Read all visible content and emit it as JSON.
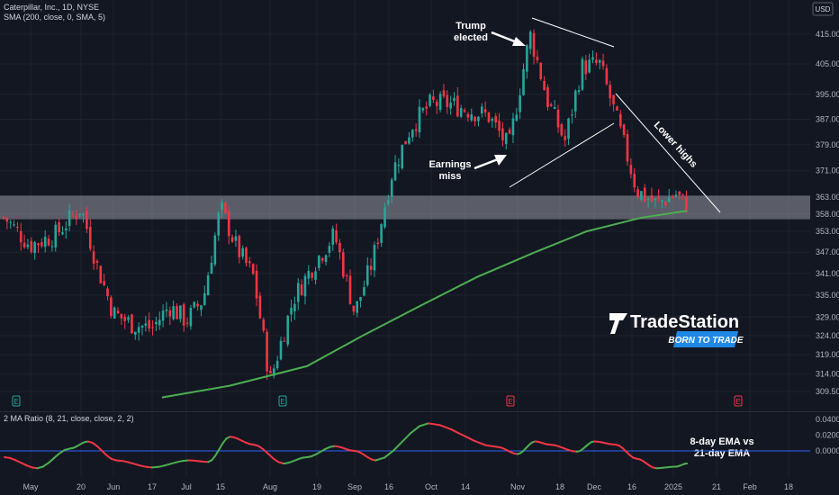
{
  "legend": {
    "main": "Caterpillar, Inc., 1D, NYSE",
    "sma": "SMA (200, close, 0, SMA, 5)",
    "ratio": "2 MA Ratio (8, 21, close, close, 2, 2)"
  },
  "currency": "USD",
  "annotations": {
    "trump_line1": "Trump",
    "trump_line2": "elected",
    "earnings_line1": "Earnings",
    "earnings_line2": "miss",
    "lower_highs": "Lower highs",
    "ema_line1": "8-day EMA vs",
    "ema_line2": "21-day EMA"
  },
  "event_markers": [
    "E",
    "E",
    "E",
    "E"
  ],
  "logo": {
    "brand": "TradeStation",
    "tagline": "BORN TO TRADE"
  },
  "colors": {
    "up": "#26a69a",
    "down": "#f23645",
    "sma": "#4caf50",
    "support_zone": "#9598a1",
    "ema_up": "#4caf50",
    "ema_down": "#f23645",
    "zero_line": "#2962ff"
  },
  "chart_data": [
    {
      "type": "candlestick",
      "title": "Caterpillar, Inc., 1D, NYSE",
      "x_tick_labels": [
        "May",
        "20",
        "Jun",
        "17",
        "Jul",
        "15",
        "Aug",
        "19",
        "Sep",
        "16",
        "Oct",
        "14",
        "Nov",
        "18",
        "Dec",
        "16",
        "2025",
        "21",
        "Feb",
        "18"
      ],
      "y_tick_labels": [
        "415.00",
        "405.00",
        "395.00",
        "387.00",
        "379.00",
        "371.00",
        "363.00",
        "358.00",
        "353.00",
        "347.00",
        "341.00",
        "335.00",
        "329.00",
        "324.00",
        "319.00",
        "314.00",
        "309.50"
      ],
      "y_axis": "log",
      "ylim": [
        307,
        420
      ],
      "support_zone": [
        356.5,
        363.5
      ],
      "close_approx": [
        {
          "x": "Apr 29",
          "y": 357
        },
        {
          "x": "May 6",
          "y": 349
        },
        {
          "x": "May 13",
          "y": 352
        },
        {
          "x": "May 20",
          "y": 360
        },
        {
          "x": "May 27",
          "y": 343
        },
        {
          "x": "Jun 3",
          "y": 330
        },
        {
          "x": "Jun 10",
          "y": 327
        },
        {
          "x": "Jun 17",
          "y": 326
        },
        {
          "x": "Jun 24",
          "y": 332
        },
        {
          "x": "Jul 1",
          "y": 328
        },
        {
          "x": "Jul 8",
          "y": 334
        },
        {
          "x": "Jul 15",
          "y": 360
        },
        {
          "x": "Jul 22",
          "y": 348
        },
        {
          "x": "Jul 29",
          "y": 340
        },
        {
          "x": "Aug 5",
          "y": 312
        },
        {
          "x": "Aug 12",
          "y": 334
        },
        {
          "x": "Aug 19",
          "y": 345
        },
        {
          "x": "Aug 26",
          "y": 352
        },
        {
          "x": "Sep 3",
          "y": 330
        },
        {
          "x": "Sep 10",
          "y": 345
        },
        {
          "x": "Sep 17",
          "y": 370
        },
        {
          "x": "Sep 24",
          "y": 385
        },
        {
          "x": "Oct 1",
          "y": 392
        },
        {
          "x": "Oct 8",
          "y": 392
        },
        {
          "x": "Oct 15",
          "y": 390
        },
        {
          "x": "Oct 22",
          "y": 388
        },
        {
          "x": "Oct 29",
          "y": 378
        },
        {
          "x": "Nov 6",
          "y": 415
        },
        {
          "x": "Nov 13",
          "y": 393
        },
        {
          "x": "Nov 20",
          "y": 380
        },
        {
          "x": "Nov 27",
          "y": 404
        },
        {
          "x": "Dec 4",
          "y": 405
        },
        {
          "x": "Dec 11",
          "y": 385
        },
        {
          "x": "Dec 18",
          "y": 365
        },
        {
          "x": "Dec 26",
          "y": 361
        },
        {
          "x": "Jan 3",
          "y": 364
        },
        {
          "x": "Jan 7",
          "y": 361
        }
      ],
      "series": [
        {
          "name": "SMA (200, close, 0, SMA, 5)",
          "points": [
            {
              "x": "Jun 21",
              "y": 308
            },
            {
              "x": "Jul 19",
              "y": 311
            },
            {
              "x": "Aug 16",
              "y": 316
            },
            {
              "x": "Sep 6",
              "y": 324
            },
            {
              "x": "Sep 27",
              "y": 332
            },
            {
              "x": "Oct 18",
              "y": 340
            },
            {
              "x": "Nov 8",
              "y": 347
            },
            {
              "x": "Nov 29",
              "y": 353
            },
            {
              "x": "Dec 20",
              "y": 357
            },
            {
              "x": "Jan 8",
              "y": 359
            }
          ]
        }
      ]
    },
    {
      "type": "line",
      "title": "2 MA Ratio (8, 21, close, close, 2, 2)",
      "y_tick_labels": [
        "0.0400",
        "0.0200",
        "0.0000"
      ],
      "ylim": [
        -0.025,
        0.042
      ],
      "series": [
        {
          "name": "2 MA Ratio",
          "points": [
            {
              "x": "Apr 29",
              "y": -0.008
            },
            {
              "x": "May 8",
              "y": -0.022
            },
            {
              "x": "May 17",
              "y": 0.003
            },
            {
              "x": "May 23",
              "y": 0.012
            },
            {
              "x": "Jun 4",
              "y": -0.012
            },
            {
              "x": "Jun 17",
              "y": -0.021
            },
            {
              "x": "Jul 2",
              "y": -0.012
            },
            {
              "x": "Jul 10",
              "y": -0.014
            },
            {
              "x": "Jul 19",
              "y": 0.018
            },
            {
              "x": "Jul 29",
              "y": 0.008
            },
            {
              "x": "Aug 9",
              "y": -0.016
            },
            {
              "x": "Aug 16",
              "y": -0.008
            },
            {
              "x": "Aug 26",
              "y": 0.006
            },
            {
              "x": "Sep 3",
              "y": 0.0
            },
            {
              "x": "Sep 11",
              "y": -0.012
            },
            {
              "x": "Sep 30",
              "y": 0.035
            },
            {
              "x": "Oct 25",
              "y": 0.005
            },
            {
              "x": "Nov 1",
              "y": -0.004
            },
            {
              "x": "Nov 8",
              "y": 0.012
            },
            {
              "x": "Nov 14",
              "y": 0.008
            },
            {
              "x": "Nov 25",
              "y": -0.001
            },
            {
              "x": "Dec 2",
              "y": 0.012
            },
            {
              "x": "Dec 10",
              "y": 0.008
            },
            {
              "x": "Dec 18",
              "y": -0.01
            },
            {
              "x": "Dec 26",
              "y": -0.022
            },
            {
              "x": "Jan 3",
              "y": -0.02
            },
            {
              "x": "Jan 8",
              "y": -0.016
            }
          ]
        }
      ]
    }
  ]
}
